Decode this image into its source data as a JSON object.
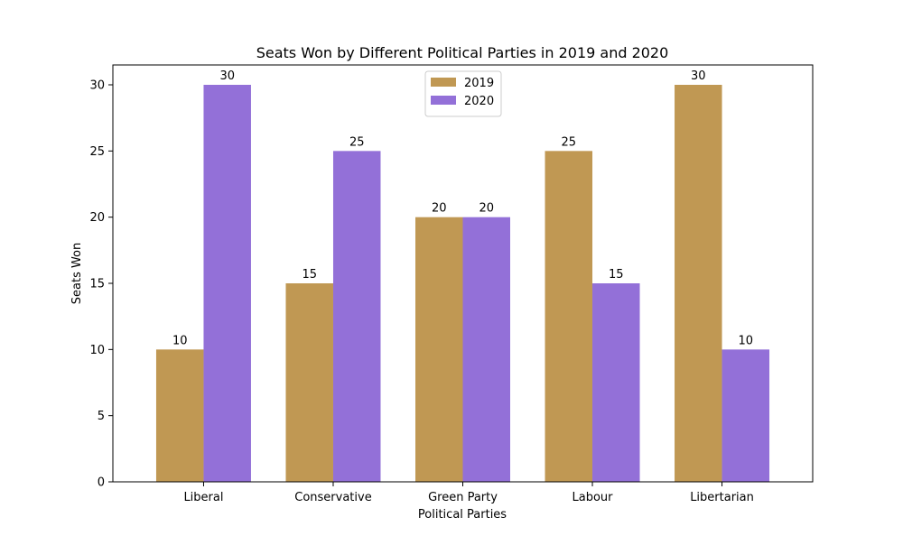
{
  "chart_data": {
    "type": "bar",
    "title": "Seats Won by Different Political Parties in 2019 and 2020",
    "xlabel": "Political Parties",
    "ylabel": "Seats Won",
    "categories": [
      "Liberal",
      "Conservative",
      "Green Party",
      "Labour",
      "Libertarian"
    ],
    "series": [
      {
        "name": "2019",
        "values": [
          10,
          15,
          20,
          25,
          30
        ],
        "color": "#c09853"
      },
      {
        "name": "2020",
        "values": [
          30,
          25,
          20,
          15,
          10
        ],
        "color": "#9370d8"
      }
    ],
    "ylim": [
      0,
      31.5
    ],
    "yticks": [
      0,
      5,
      10,
      15,
      20,
      25,
      30
    ],
    "grid": false,
    "legend_position": "top-center",
    "data_labels": true
  }
}
